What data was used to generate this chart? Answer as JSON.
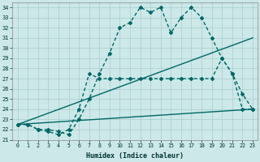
{
  "xlabel": "Humidex (Indice chaleur)",
  "bg_color": "#cce8e8",
  "grid_color": "#aacccc",
  "line_color": "#006666",
  "xlim": [
    -0.5,
    23.5
  ],
  "ylim": [
    21,
    34.5
  ],
  "yticks": [
    21,
    22,
    23,
    24,
    25,
    26,
    27,
    28,
    29,
    30,
    31,
    32,
    33,
    34
  ],
  "xticks": [
    0,
    1,
    2,
    3,
    4,
    5,
    6,
    7,
    8,
    9,
    10,
    11,
    12,
    13,
    14,
    15,
    16,
    17,
    18,
    19,
    20,
    21,
    22,
    23
  ],
  "series": [
    {
      "x": [
        0,
        1,
        2,
        3,
        4,
        5,
        6,
        7,
        8,
        9,
        10,
        11,
        12,
        13,
        14,
        15,
        16,
        17,
        18,
        19,
        20,
        21,
        22,
        23
      ],
      "y": [
        22.5,
        22.5,
        22.0,
        22.0,
        21.8,
        21.5,
        23.0,
        25.0,
        27.5,
        29.5,
        32.0,
        32.5,
        34.0,
        33.5,
        34.0,
        31.5,
        33.0,
        34.0,
        33.0,
        31.0,
        29.0,
        27.5,
        24.0,
        24.0
      ],
      "marker": "D",
      "markersize": 2.0,
      "linewidth": 1.0,
      "has_marker": true
    },
    {
      "x": [
        0,
        1,
        2,
        3,
        4,
        5,
        6,
        7,
        8,
        9,
        10,
        11,
        12,
        13,
        14,
        15,
        16,
        17,
        18,
        19,
        20,
        21,
        22,
        23
      ],
      "y": [
        22.5,
        22.5,
        22.0,
        21.8,
        21.5,
        22.0,
        24.0,
        27.5,
        27.0,
        27.0,
        27.0,
        27.0,
        27.0,
        27.0,
        27.0,
        27.0,
        27.0,
        27.0,
        27.0,
        27.0,
        29.0,
        27.5,
        25.5,
        24.0
      ],
      "marker": "D",
      "markersize": 2.0,
      "linewidth": 1.0,
      "has_marker": true
    },
    {
      "x": [
        0,
        23
      ],
      "y": [
        22.5,
        31.0
      ],
      "marker": null,
      "markersize": 0,
      "linewidth": 1.0,
      "has_marker": false
    },
    {
      "x": [
        0,
        23
      ],
      "y": [
        22.5,
        24.0
      ],
      "marker": null,
      "markersize": 0,
      "linewidth": 1.0,
      "has_marker": false
    }
  ]
}
